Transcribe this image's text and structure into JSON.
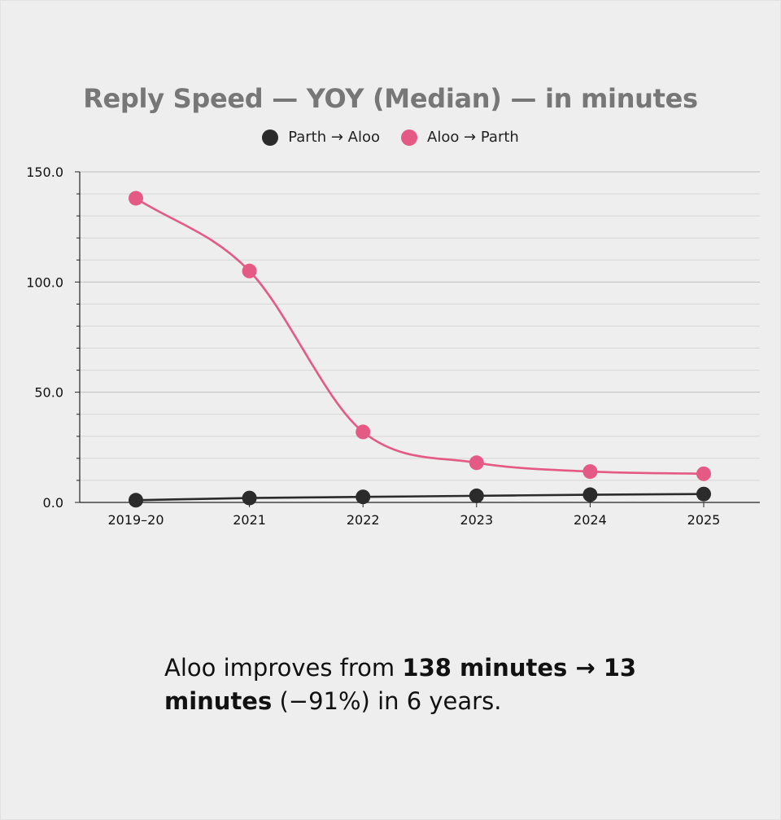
{
  "chart_data": {
    "type": "line",
    "title": "Reply Speed — YOY (Median) — in minutes",
    "categories": [
      "2019–20",
      "2021",
      "2022",
      "2023",
      "2024",
      "2025"
    ],
    "series": [
      {
        "name": "Parth → Aloo",
        "color": "#2b2b2b",
        "values": [
          1,
          2,
          2.5,
          3,
          3.5,
          3.8
        ]
      },
      {
        "name": "Aloo → Parth",
        "color": "#e45a85",
        "values": [
          138,
          105,
          32,
          18,
          14,
          13
        ]
      }
    ],
    "y_ticks": [
      "0.0",
      "50.0",
      "100.0",
      "150.0"
    ],
    "ylim": [
      0,
      150
    ],
    "grid": true,
    "legend_position": "top-center",
    "xlabel": "",
    "ylabel": ""
  },
  "caption": {
    "prefix": "Aloo improves from ",
    "bold1": "138 minutes → 13 minutes",
    "suffix": " (−91%) in 6 years."
  }
}
